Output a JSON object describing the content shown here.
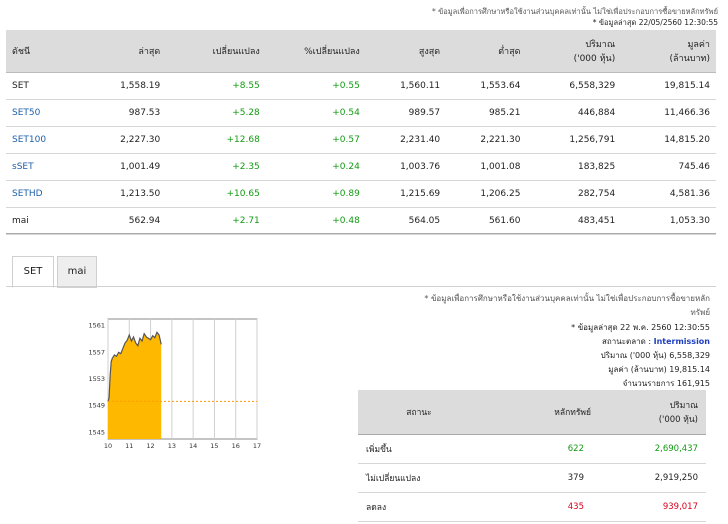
{
  "top_disclaimer": "* ข้อมูลเพื่อการศึกษาหรือใช้งานส่วนบุคคลเท่านั้น ไม่ใช่เพื่อประกอบการซื้อขายหลักทรัพย์",
  "top_updated": "* ข้อมูลล่าสุด 22/05/2560 12:30:55",
  "index_table": {
    "headers": [
      "ดัชนี",
      "ล่าสุด",
      "เปลี่ยนแปลง",
      "%เปลี่ยนแปลง",
      "สูงสุด",
      "ต่ำสุด",
      "ปริมาณ\n('000 หุ้น)",
      "มูลค่า\n(ล้านบาท)"
    ],
    "header_vol_1": "ปริมาณ",
    "header_vol_2": "('000 หุ้น)",
    "header_val_1": "มูลค่า",
    "header_val_2": "(ล้านบาท)",
    "rows": [
      {
        "name": "SET",
        "last": "1,558.19",
        "change": "+8.55",
        "pct": "+0.55",
        "high": "1,560.11",
        "low": "1,553.64",
        "volume": "6,558,329",
        "value": "19,815.14"
      },
      {
        "name": "SET50",
        "last": "987.53",
        "change": "+5.28",
        "pct": "+0.54",
        "high": "989.57",
        "low": "985.21",
        "volume": "446,884",
        "value": "11,466.36"
      },
      {
        "name": "SET100",
        "last": "2,227.30",
        "change": "+12.68",
        "pct": "+0.57",
        "high": "2,231.40",
        "low": "2,221.30",
        "volume": "1,256,791",
        "value": "14,815.20"
      },
      {
        "name": "sSET",
        "last": "1,001.49",
        "change": "+2.35",
        "pct": "+0.24",
        "high": "1,003.76",
        "low": "1,001.08",
        "volume": "183,825",
        "value": "745.46"
      },
      {
        "name": "SETHD",
        "last": "1,213.50",
        "change": "+10.65",
        "pct": "+0.89",
        "high": "1,215.69",
        "low": "1,206.25",
        "volume": "282,754",
        "value": "4,581.36"
      },
      {
        "name": "mai",
        "last": "562.94",
        "change": "+2.71",
        "pct": "+0.48",
        "high": "564.05",
        "low": "561.60",
        "volume": "483,451",
        "value": "1,053.30"
      }
    ]
  },
  "tabs": [
    {
      "label": "SET"
    },
    {
      "label": "mai"
    }
  ],
  "info": {
    "disclaimer_1": "* ข้อมูลเพื่อการศึกษาหรือใช้งานส่วนบุคคลเท่านั้น ไม่ใช่เพื่อประกอบการซื้อขายหลัก",
    "disclaimer_2": "ทรัพย์",
    "updated": "* ข้อมูลล่าสุด 22 พ.ค. 2560 12:30:55",
    "market_status_label": "สถานะตลาด :",
    "market_status": "Intermission",
    "volume_label": "ปริมาณ ('000 หุ้น)",
    "volume": "6,558,329",
    "value_label": "มูลค่า (ล้านบาท)",
    "value": "19,815.14",
    "deals_label": "จำนวนรายการ",
    "deals": "161,915"
  },
  "stat_table": {
    "header_status": "สถานะ",
    "header_securities": "หลักทรัพย์",
    "header_volume_1": "ปริมาณ",
    "header_volume_2": "('000 หุ้น)",
    "rows": [
      {
        "label": "เพิ่มขึ้น",
        "count": "622",
        "volume": "2,690,437",
        "tone": "pos"
      },
      {
        "label": "ไม่เปลี่ยนแปลง",
        "count": "379",
        "volume": "2,919,250",
        "tone": "neu"
      },
      {
        "label": "ลดลง",
        "count": "435",
        "volume": "939,017",
        "tone": "neg"
      }
    ]
  },
  "chart_data": {
    "type": "area",
    "x_ticks": [
      "10",
      "11",
      "12",
      "13",
      "14",
      "15",
      "16",
      "17"
    ],
    "y_ticks": [
      "1561",
      "1557",
      "1553",
      "1549",
      "1545"
    ],
    "ylim": [
      1544,
      1562
    ],
    "xlim": [
      10,
      17
    ],
    "previous_close": 1549.64,
    "fill_color": "#ffb800",
    "line_color": "#555555",
    "x": [
      10.0,
      10.05,
      10.1,
      10.15,
      10.2,
      10.3,
      10.4,
      10.5,
      10.6,
      10.7,
      10.8,
      10.9,
      11.0,
      11.1,
      11.2,
      11.3,
      11.4,
      11.5,
      11.6,
      11.7,
      11.8,
      11.9,
      12.0,
      12.1,
      12.2,
      12.3,
      12.4,
      12.5
    ],
    "y": [
      1549.6,
      1550.2,
      1553.5,
      1555.6,
      1556.1,
      1556.6,
      1556.4,
      1557.0,
      1556.8,
      1557.6,
      1558.4,
      1558.8,
      1559.6,
      1558.7,
      1559.3,
      1558.4,
      1558.0,
      1559.1,
      1558.7,
      1559.8,
      1559.3,
      1559.1,
      1558.9,
      1559.5,
      1559.2,
      1560.0,
      1559.6,
      1558.2
    ]
  }
}
